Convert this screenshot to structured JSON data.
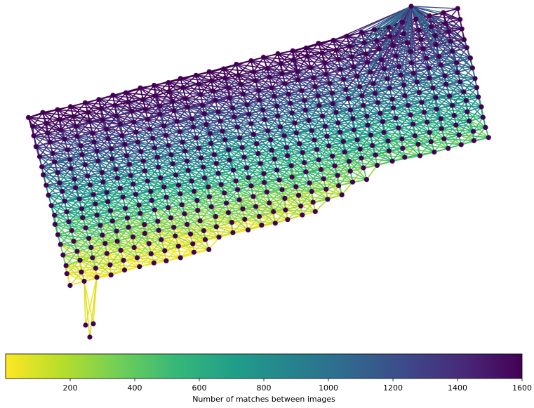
{
  "chart_data": {
    "type": "graph",
    "description_of_marks": "image-match graph: nodes are image positions, edges colored by number of matches",
    "node_color": "#440154",
    "colormap": "viridis_r",
    "grid": false,
    "nodes": {
      "rows": 18,
      "cols": 32,
      "layout": "rotated-grid"
    },
    "colorbar": {
      "orientation": "horizontal",
      "vmin": 0,
      "vmax": 1600,
      "ticks": [
        200,
        400,
        600,
        800,
        1000,
        1200,
        1400,
        1600
      ],
      "tick_labels": [
        "200",
        "400",
        "600",
        "800",
        "1000",
        "1200",
        "1400",
        "1600"
      ],
      "label": "Number of matches between images",
      "position": "bottom"
    }
  }
}
